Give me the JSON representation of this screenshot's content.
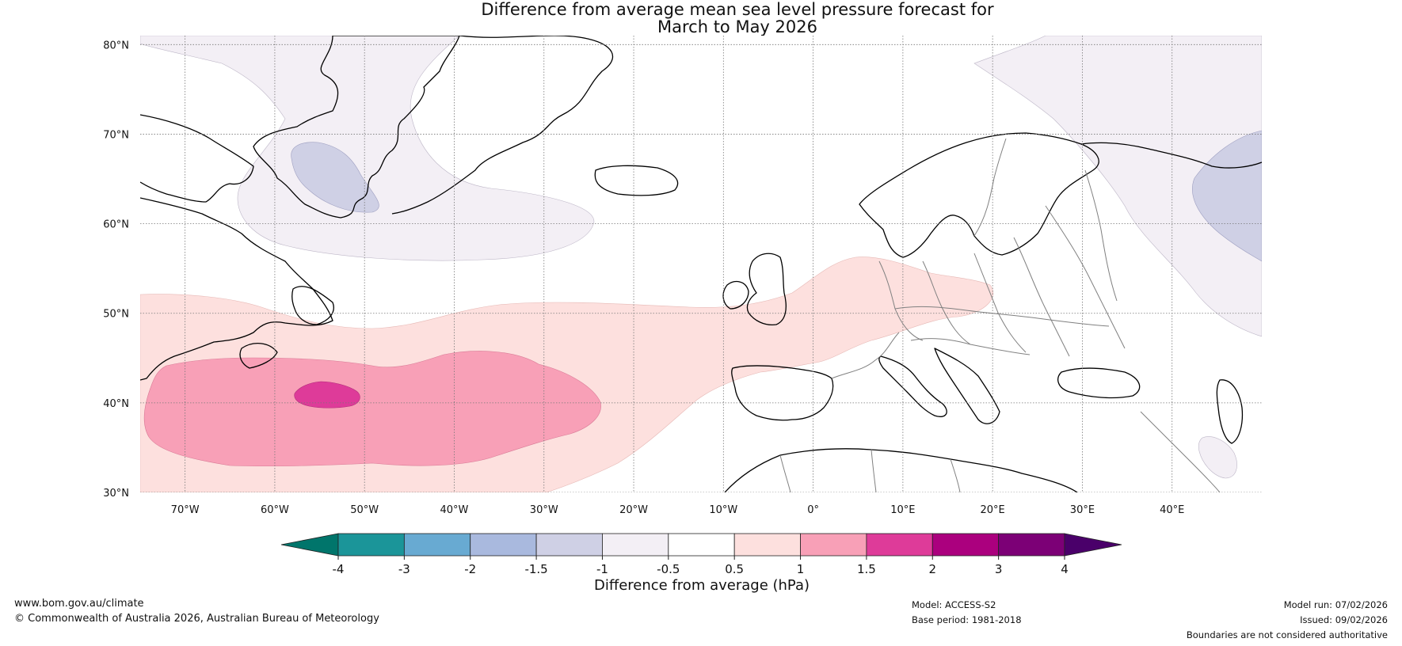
{
  "title": {
    "line1": "Difference from average mean sea level pressure forecast for",
    "line2": "March to May 2026"
  },
  "map": {
    "lat_labels": [
      "80°N",
      "70°N",
      "60°N",
      "50°N",
      "40°N",
      "30°N"
    ],
    "lon_labels": [
      "70°W",
      "60°W",
      "50°W",
      "40°W",
      "30°W",
      "20°W",
      "10°W",
      "0°",
      "10°E",
      "20°E",
      "30°E",
      "40°E"
    ],
    "lat_range": [
      30,
      81
    ],
    "lon_range": [
      -75,
      50
    ],
    "land_color": "#ffffff",
    "coast_color": "#000000",
    "border_color": "#808080"
  },
  "colorbar": {
    "label": "Difference from average (hPa)",
    "ticks": [
      "-4",
      "-3",
      "-2",
      "-1.5",
      "-1",
      "-0.5",
      "0.5",
      "1",
      "1.5",
      "2",
      "3",
      "4"
    ],
    "colors": [
      "#00756b",
      "#1b9599",
      "#68aad2",
      "#a9b9de",
      "#cfd0e5",
      "#f3eff5",
      "#ffffff",
      "#fde0de",
      "#f8a0b7",
      "#de3b99",
      "#ab007e",
      "#7c0076",
      "#4a006a"
    ]
  },
  "footer": {
    "url": "www.bom.gov.au/climate",
    "copyright": "© Commonwealth of Australia 2026, Australian Bureau of Meteorology",
    "model": "Model: ACCESS-S2",
    "base_period": "Base period: 1981-2018",
    "model_run": "Model run: 07/02/2026",
    "issued": "Issued: 09/02/2026",
    "disclaimer": "Boundaries are not considered authoritative"
  }
}
